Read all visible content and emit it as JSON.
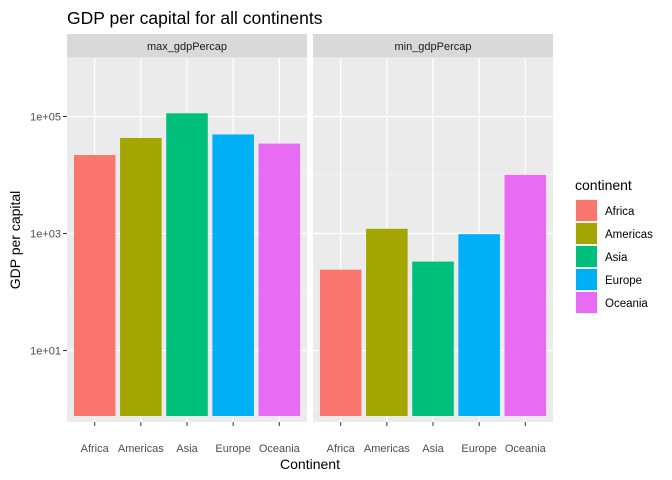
{
  "chart_data": {
    "type": "bar",
    "title": "GDP per capital for all continents",
    "xlabel": "Continent",
    "ylabel": "GDP per capital",
    "yscale": "log10",
    "ylim": [
      0.6,
      1000000
    ],
    "yticks": [
      10,
      1000,
      100000
    ],
    "ytick_labels": [
      "1e+01",
      "1e+03",
      "1e+05"
    ],
    "grid": true,
    "legend": {
      "title": "continent",
      "placement": "right",
      "entries": [
        {
          "name": "Africa",
          "color": "#F8766D"
        },
        {
          "name": "Americas",
          "color": "#A3A500"
        },
        {
          "name": "Asia",
          "color": "#00BF7D"
        },
        {
          "name": "Europe",
          "color": "#00B0F6"
        },
        {
          "name": "Oceania",
          "color": "#E76BF3"
        }
      ]
    },
    "categories": [
      "Africa",
      "Americas",
      "Asia",
      "Europe",
      "Oceania"
    ],
    "panels": [
      {
        "strip": "max_gdpPercap",
        "values": [
          21951,
          42952,
          113523,
          49357,
          34435
        ]
      },
      {
        "strip": "min_gdpPercap",
        "values": [
          241,
          1202,
          331,
          974,
          10040
        ]
      }
    ]
  }
}
